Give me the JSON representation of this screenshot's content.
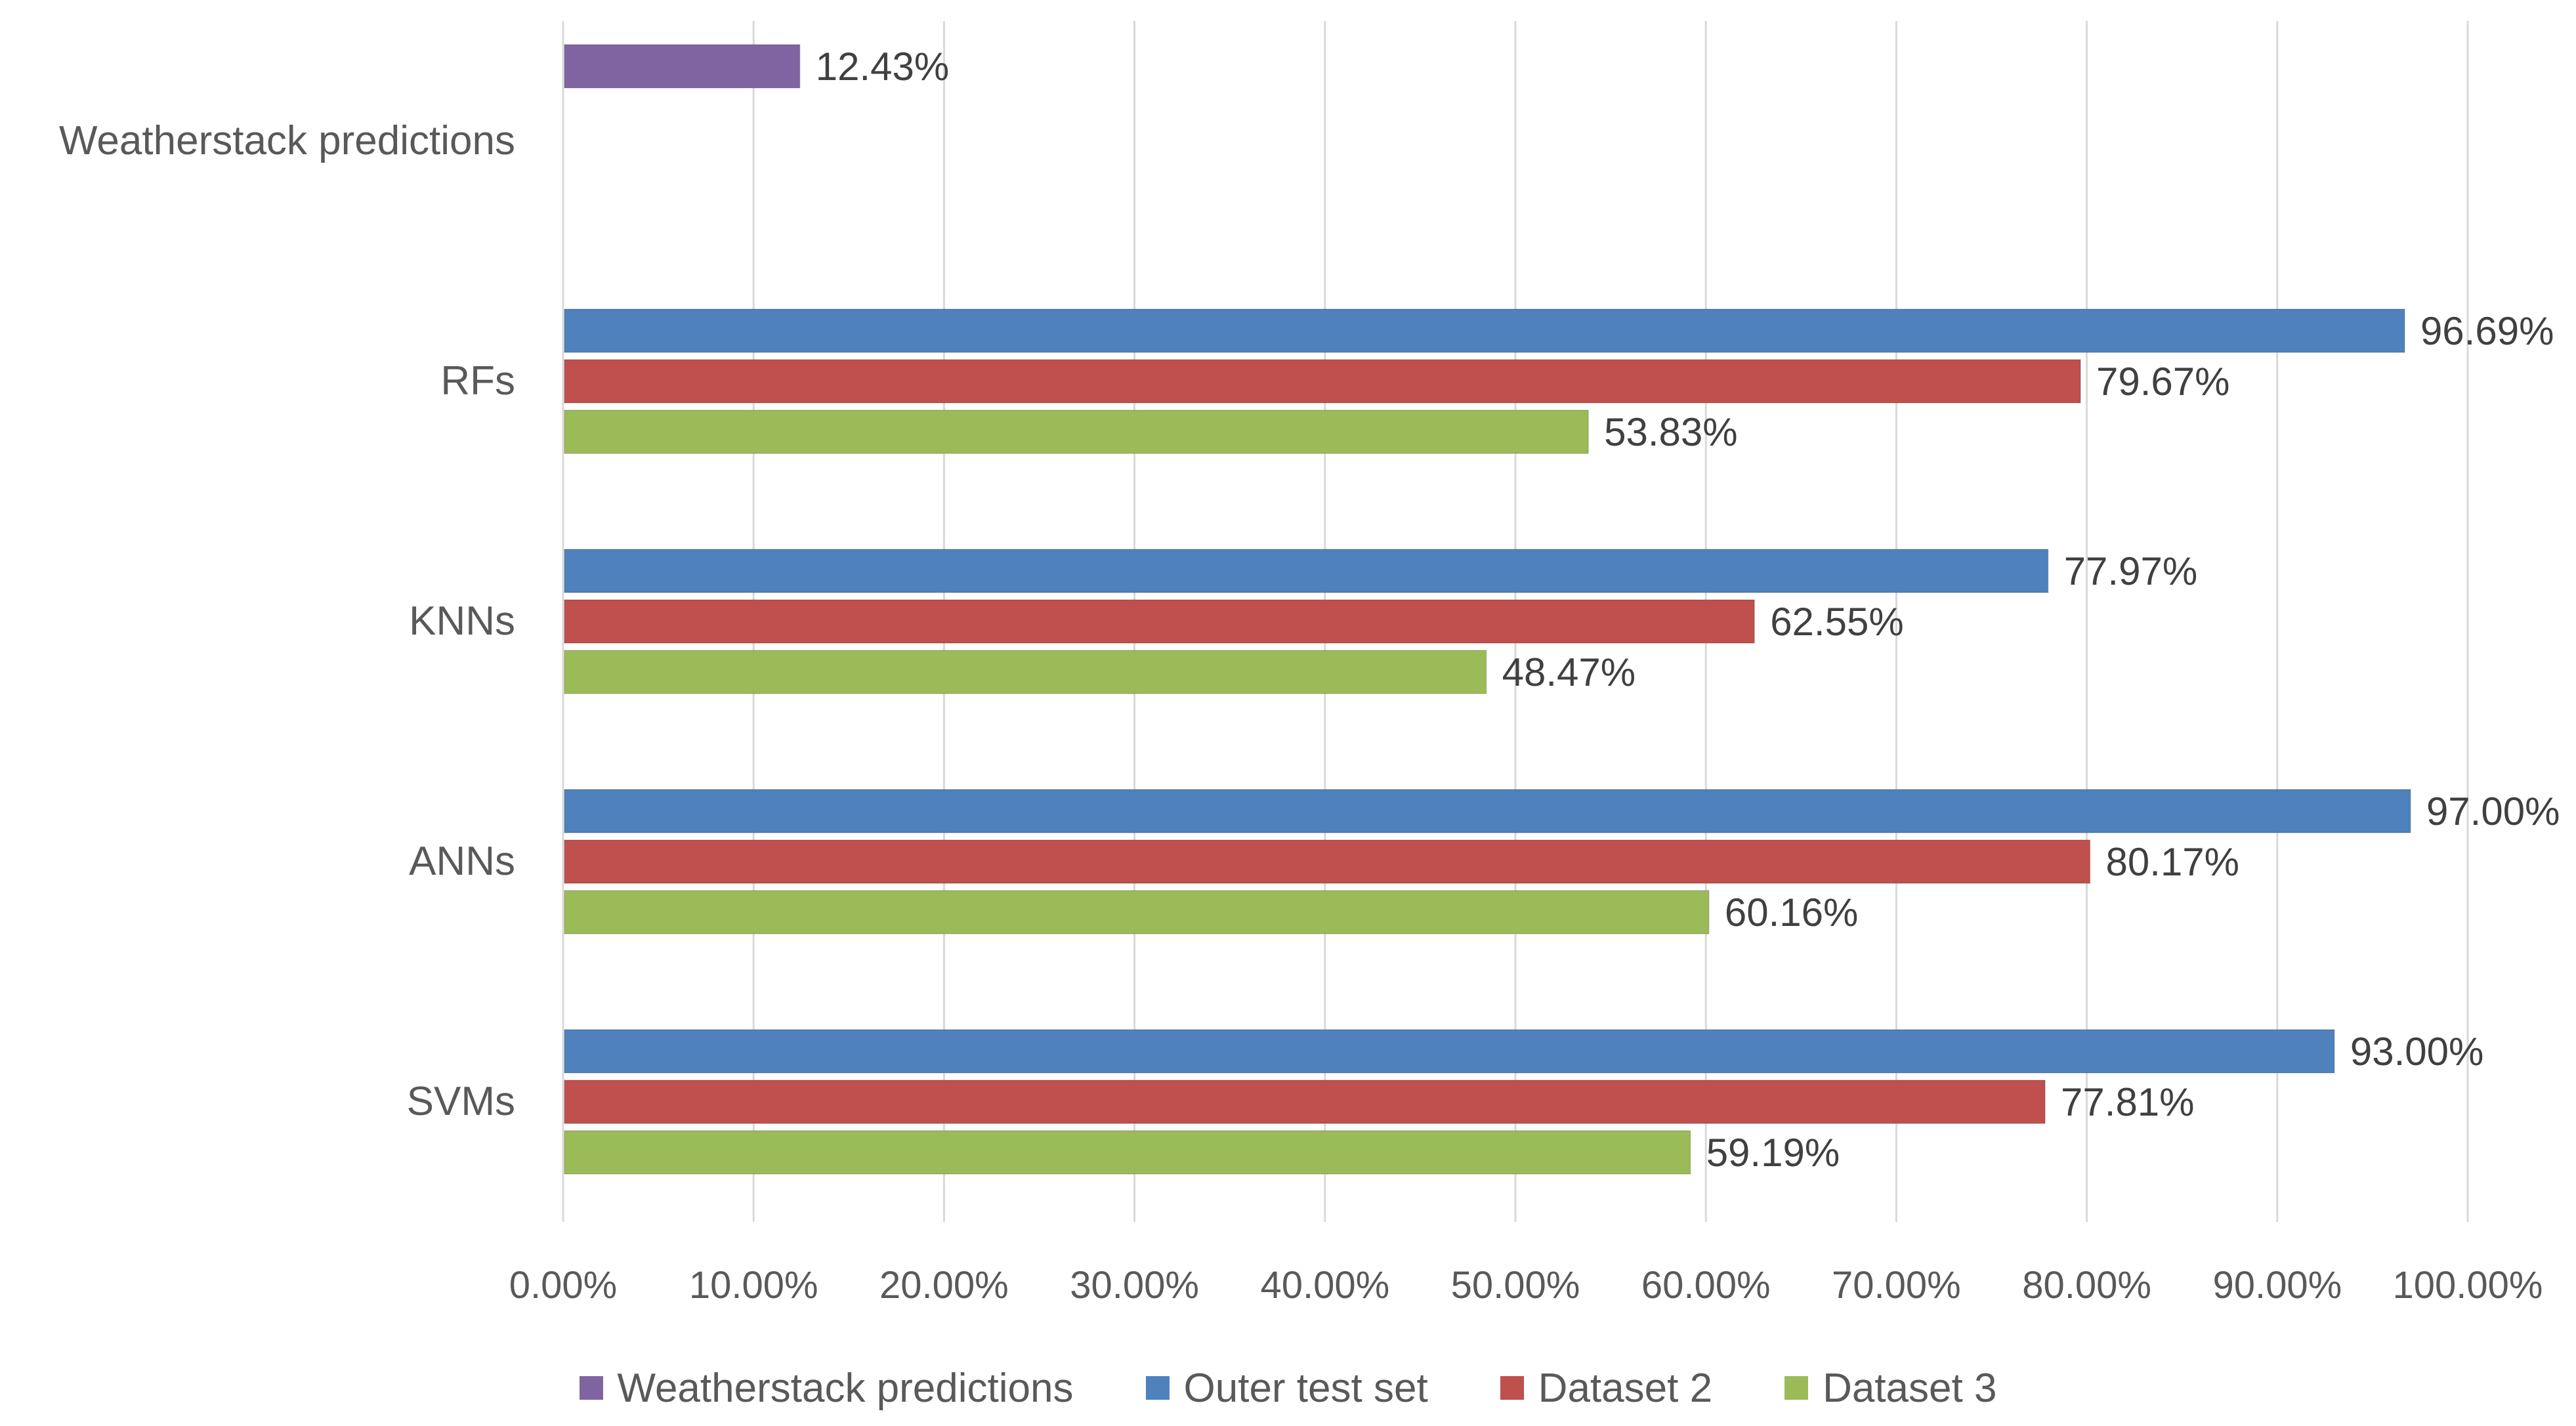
{
  "chart_data": {
    "type": "bar",
    "orientation": "horizontal",
    "title": "",
    "xlabel": "",
    "ylabel": "",
    "xlim": [
      0,
      100
    ],
    "x_ticks": [
      "0.00%",
      "10.00%",
      "20.00%",
      "30.00%",
      "40.00%",
      "50.00%",
      "60.00%",
      "70.00%",
      "80.00%",
      "90.00%",
      "100.00%"
    ],
    "categories": [
      "Weatherstack predictions",
      "RFs",
      "KNNs",
      "ANNs",
      "SVMs"
    ],
    "series": [
      {
        "name": "Weatherstack predictions",
        "color": "#8064a2",
        "values": [
          12.43,
          null,
          null,
          null,
          null
        ],
        "labels": [
          "12.43%",
          "",
          "",
          "",
          ""
        ]
      },
      {
        "name": "Outer test set",
        "color": "#4f81bd",
        "values": [
          null,
          96.69,
          77.97,
          97.0,
          93.0
        ],
        "labels": [
          "",
          "96.69%",
          "77.97%",
          "97.00%",
          "93.00%"
        ]
      },
      {
        "name": "Dataset 2",
        "color": "#c0504d",
        "values": [
          null,
          79.67,
          62.55,
          80.17,
          77.81
        ],
        "labels": [
          "",
          "79.67%",
          "62.55%",
          "80.17%",
          "77.81%"
        ]
      },
      {
        "name": "Dataset 3",
        "color": "#9bbb59",
        "values": [
          null,
          53.83,
          48.47,
          60.16,
          59.19
        ],
        "labels": [
          "",
          "53.83%",
          "48.47%",
          "60.16%",
          "59.19%"
        ]
      }
    ],
    "grid": true,
    "legend_position": "bottom"
  }
}
